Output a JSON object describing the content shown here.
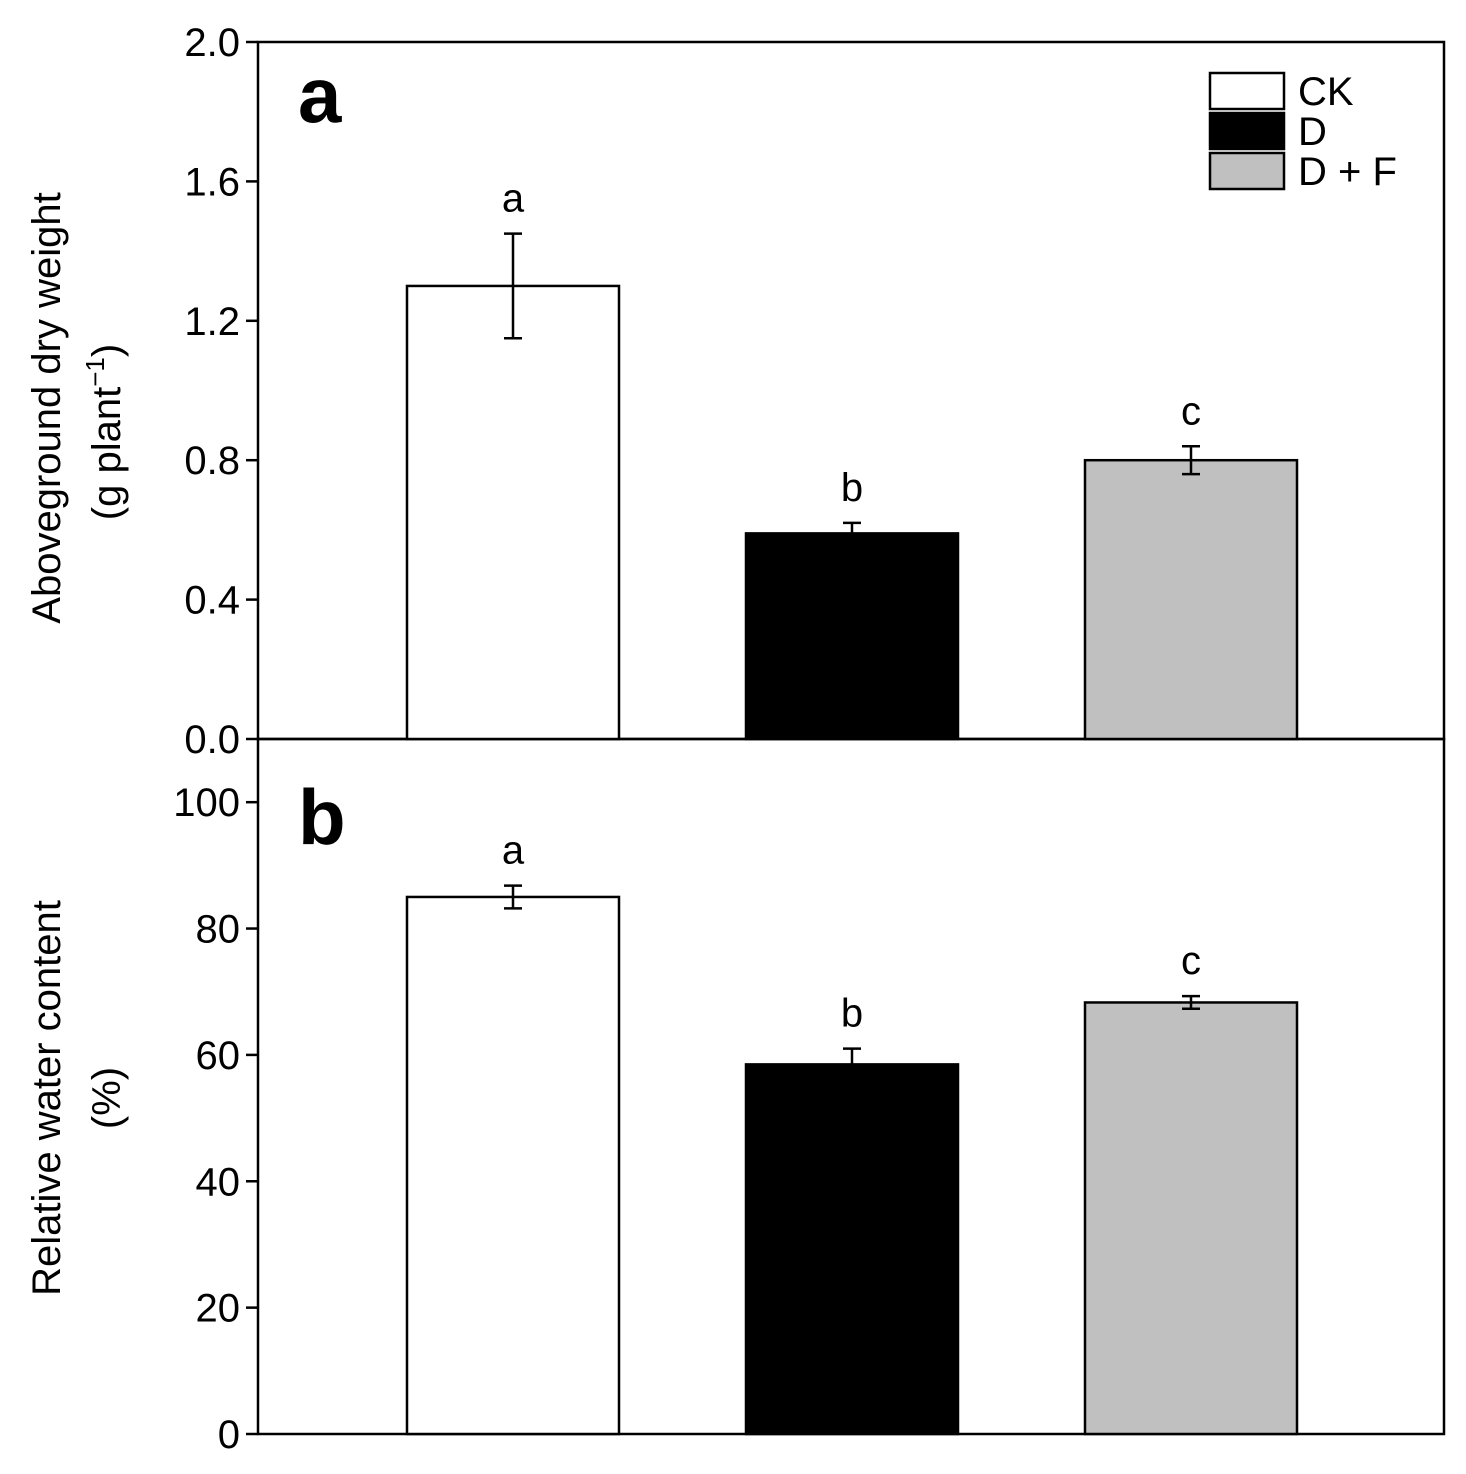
{
  "colors": {
    "CK": "#ffffff",
    "D": "#000000",
    "D + F": "#c0c0c0",
    "stroke": "#000000"
  },
  "legend": [
    "CK",
    "D",
    "D + F"
  ],
  "chart_data": [
    {
      "type": "bar",
      "panel": "a",
      "categories": [
        "CK",
        "D",
        "D + F"
      ],
      "values": [
        1.3,
        0.59,
        0.8
      ],
      "errors": [
        0.15,
        0.03,
        0.04
      ],
      "significance": [
        "a",
        "b",
        "c"
      ],
      "ylabel_line1": "Aboveground dry weight",
      "ylabel_line2_prefix": "(g plant",
      "ylabel_line2_sup": "−1",
      "ylabel_line2_suffix": ")",
      "ylim": [
        0,
        2.0
      ],
      "yticks": [
        "0.0",
        "0.4",
        "0.8",
        "1.2",
        "1.6",
        "2.0"
      ],
      "ytick_values": [
        0,
        0.4,
        0.8,
        1.2,
        1.6,
        2.0
      ],
      "legend_position": "top-right"
    },
    {
      "type": "bar",
      "panel": "b",
      "categories": [
        "CK",
        "D",
        "D + F"
      ],
      "values": [
        85,
        58.5,
        68.3
      ],
      "errors": [
        1.8,
        2.5,
        1.0
      ],
      "significance": [
        "a",
        "b",
        "c"
      ],
      "ylabel_line1": "Relative water content",
      "ylabel_line2": "(%)",
      "ylim": [
        0,
        110
      ],
      "yticks": [
        "0",
        "20",
        "40",
        "60",
        "80",
        "100"
      ],
      "ytick_values": [
        0,
        20,
        40,
        60,
        80,
        100
      ]
    }
  ]
}
